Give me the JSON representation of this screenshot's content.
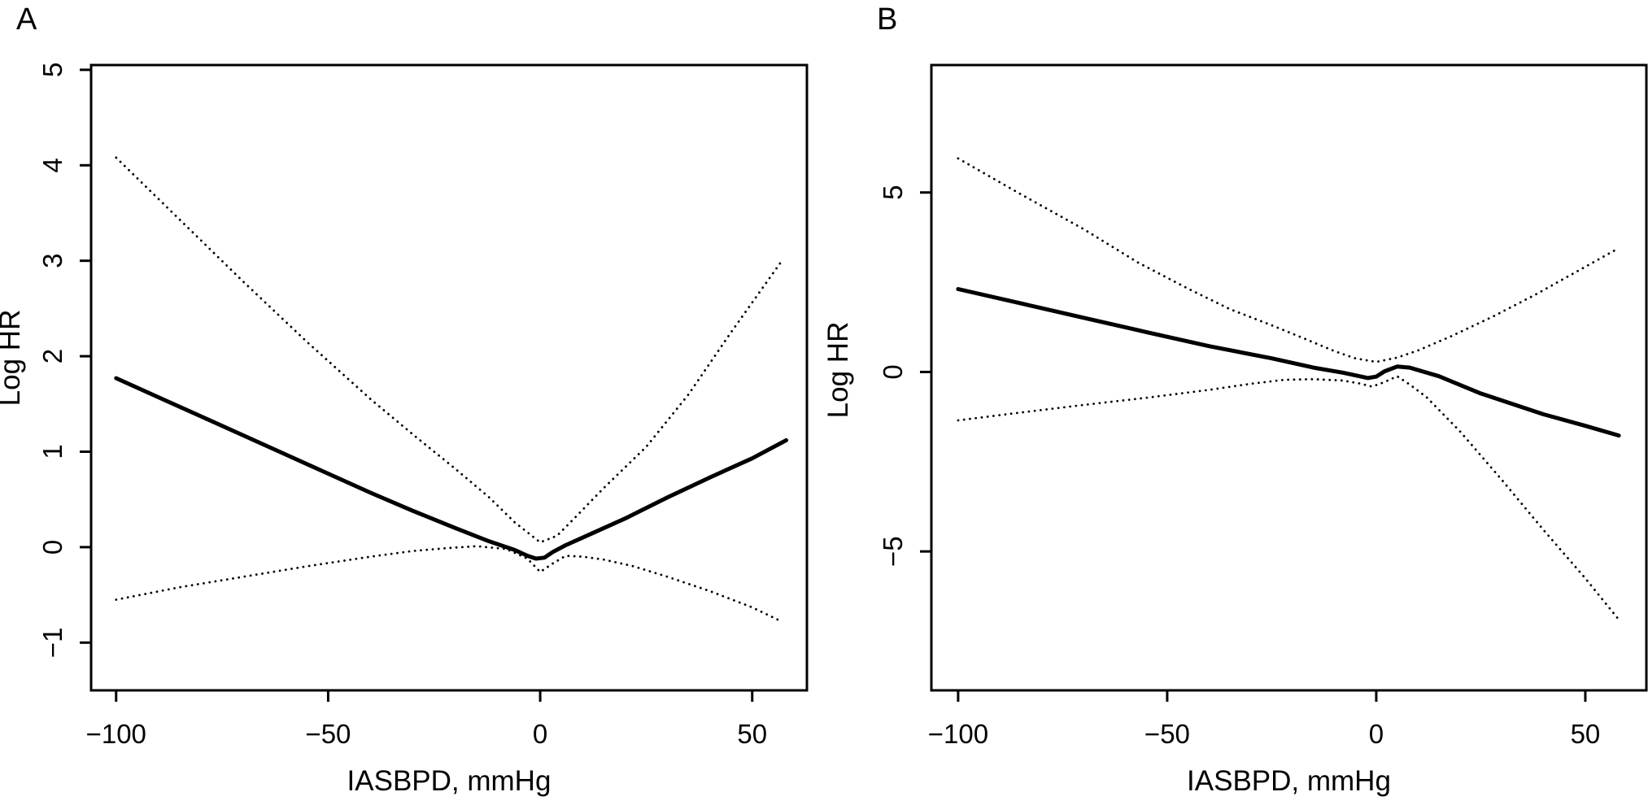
{
  "figure": {
    "background": "#ffffff",
    "line_color": "#000000"
  },
  "chart_data": [
    {
      "type": "line",
      "panel_label": "A",
      "xlabel": "IASBPD, mmHg",
      "ylabel": "Log HR",
      "xlim": [
        -105.9,
        62.9
      ],
      "ylim": [
        -1.5,
        5.05
      ],
      "grid": false,
      "legend": null,
      "xticks": [
        {
          "value": -100,
          "label": "−100"
        },
        {
          "value": -50,
          "label": "−50"
        },
        {
          "value": 0,
          "label": "0"
        },
        {
          "value": 50,
          "label": "50"
        }
      ],
      "yticks": [
        {
          "value": -1,
          "label": "−1"
        },
        {
          "value": 0,
          "label": "0"
        },
        {
          "value": 1,
          "label": "1"
        },
        {
          "value": 2,
          "label": "2"
        },
        {
          "value": 3,
          "label": "3"
        },
        {
          "value": 4,
          "label": "4"
        },
        {
          "value": 5,
          "label": "5"
        }
      ],
      "series": [
        {
          "name": "estimate",
          "style": "solid",
          "x": [
            -100,
            -90,
            -80,
            -70,
            -60,
            -50,
            -40,
            -30,
            -20,
            -12,
            -6,
            -3,
            -1,
            1,
            3,
            6,
            10,
            20,
            30,
            40,
            50,
            58
          ],
          "y": [
            1.77,
            1.57,
            1.37,
            1.17,
            0.97,
            0.77,
            0.57,
            0.38,
            0.2,
            0.06,
            -0.03,
            -0.09,
            -0.12,
            -0.11,
            -0.05,
            0.02,
            0.1,
            0.3,
            0.52,
            0.73,
            0.93,
            1.12
          ]
        },
        {
          "name": "upper-95ci",
          "style": "dotted",
          "x": [
            -100,
            -85,
            -70,
            -55,
            -40,
            -30,
            -20,
            -12,
            -6,
            0,
            4,
            8,
            15,
            25,
            35,
            45,
            57
          ],
          "y": [
            4.08,
            3.43,
            2.78,
            2.15,
            1.55,
            1.18,
            0.82,
            0.52,
            0.26,
            0.05,
            0.12,
            0.3,
            0.62,
            1.05,
            1.6,
            2.25,
            3.0
          ]
        },
        {
          "name": "lower-95ci",
          "style": "dotted",
          "x": [
            -100,
            -85,
            -70,
            -55,
            -40,
            -30,
            -22,
            -15,
            -8,
            -3,
            0,
            3,
            6,
            10,
            15,
            22,
            30,
            40,
            50,
            57
          ],
          "y": [
            -0.55,
            -0.42,
            -0.31,
            -0.2,
            -0.1,
            -0.04,
            -0.01,
            0.01,
            -0.02,
            -0.12,
            -0.26,
            -0.17,
            -0.09,
            -0.1,
            -0.13,
            -0.2,
            -0.31,
            -0.46,
            -0.63,
            -0.78
          ]
        }
      ]
    },
    {
      "type": "line",
      "panel_label": "B",
      "xlabel": "IASBPD, mmHg",
      "ylabel": "Log HR",
      "xlim": [
        -106.4,
        64.6
      ],
      "ylim": [
        -8.87,
        8.55
      ],
      "grid": false,
      "legend": null,
      "xticks": [
        {
          "value": -100,
          "label": "−100"
        },
        {
          "value": -50,
          "label": "−50"
        },
        {
          "value": 0,
          "label": "0"
        },
        {
          "value": 50,
          "label": "50"
        }
      ],
      "yticks": [
        {
          "value": -5,
          "label": "−5"
        },
        {
          "value": 0,
          "label": "0"
        },
        {
          "value": 5,
          "label": "5"
        }
      ],
      "series": [
        {
          "name": "estimate",
          "style": "solid",
          "x": [
            -100,
            -85,
            -70,
            -55,
            -40,
            -25,
            -15,
            -8,
            -4,
            -2,
            0,
            2,
            5,
            8,
            15,
            25,
            40,
            50,
            58
          ],
          "y": [
            2.31,
            1.91,
            1.51,
            1.11,
            0.72,
            0.38,
            0.12,
            -0.02,
            -0.12,
            -0.17,
            -0.13,
            0.02,
            0.15,
            0.12,
            -0.12,
            -0.6,
            -1.18,
            -1.5,
            -1.77
          ]
        },
        {
          "name": "upper-95ci",
          "style": "dotted",
          "x": [
            -100,
            -85,
            -70,
            -57,
            -45,
            -35,
            -25,
            -17,
            -10,
            -5,
            0,
            5,
            10,
            18,
            28,
            38,
            48,
            58
          ],
          "y": [
            5.95,
            4.95,
            3.98,
            3.05,
            2.32,
            1.75,
            1.3,
            0.92,
            0.58,
            0.38,
            0.28,
            0.4,
            0.6,
            1.0,
            1.55,
            2.15,
            2.8,
            3.45
          ]
        },
        {
          "name": "lower-95ci",
          "style": "dotted",
          "x": [
            -100,
            -85,
            -70,
            -55,
            -40,
            -30,
            -22,
            -15,
            -8,
            -4,
            -1,
            2,
            5,
            8,
            12,
            20,
            30,
            40,
            50,
            58
          ],
          "y": [
            -1.35,
            -1.13,
            -0.92,
            -0.72,
            -0.5,
            -0.33,
            -0.22,
            -0.2,
            -0.24,
            -0.32,
            -0.41,
            -0.28,
            -0.12,
            -0.35,
            -0.7,
            -1.65,
            -3.0,
            -4.4,
            -5.75,
            -6.9
          ]
        }
      ]
    }
  ]
}
